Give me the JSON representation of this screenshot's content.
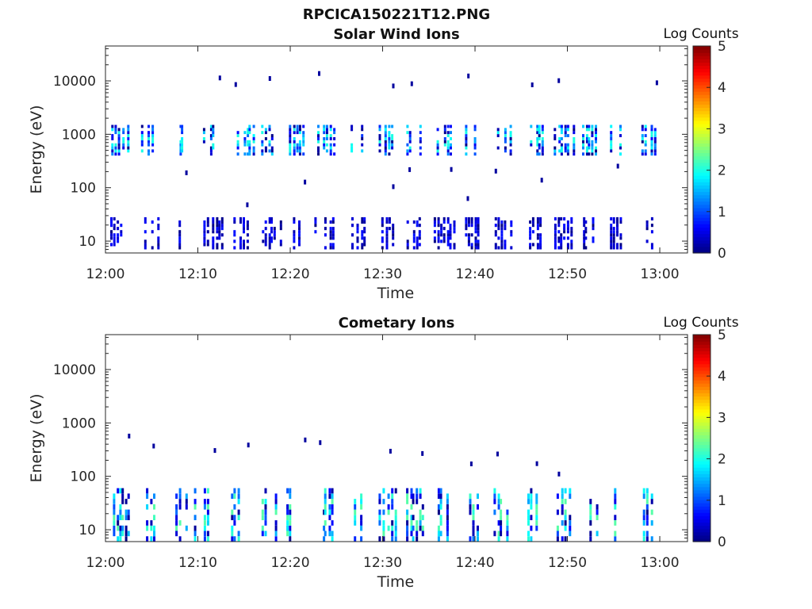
{
  "figure_title": "RPCICA150221T12.PNG",
  "chart_data": [
    {
      "type": "heatmap",
      "title": "Solar Wind Ions",
      "xlabel": "Time",
      "ylabel": "Energy (eV)",
      "x_ticks": [
        "12:00",
        "12:10",
        "12:20",
        "12:30",
        "12:40",
        "12:50",
        "13:00"
      ],
      "x_range_minutes": [
        0,
        63
      ],
      "y_ticks": [
        10,
        100,
        1000,
        10000
      ],
      "y_tick_labels": [
        "10",
        "100",
        "1000",
        "10000"
      ],
      "y_scale": "log",
      "y_range": [
        6,
        45000
      ],
      "colorbar": {
        "label": "Log Counts",
        "ticks": [
          "0",
          "1",
          "2",
          "3",
          "4",
          "5"
        ],
        "range": [
          0,
          5
        ],
        "colormap": "jet"
      },
      "bursts_minutes": [
        1.5,
        4.8,
        8.5,
        11.5,
        14.8,
        17.8,
        20.8,
        23.5,
        27.5,
        30.5,
        33.5,
        36.5,
        39.5,
        43.0,
        46.5,
        49.5,
        52.5,
        55.5,
        59.0
      ],
      "bands": [
        {
          "e_low": 400,
          "e_high": 1500,
          "max_log_count": 2.0
        },
        {
          "e_low": 7,
          "e_high": 28,
          "max_log_count": 0.7
        }
      ]
    },
    {
      "type": "heatmap",
      "title": "Cometary Ions",
      "xlabel": "Time",
      "ylabel": "Energy (eV)",
      "x_ticks": [
        "12:00",
        "12:10",
        "12:20",
        "12:30",
        "12:40",
        "12:50",
        "13:00"
      ],
      "x_range_minutes": [
        0,
        63
      ],
      "y_ticks": [
        10,
        100,
        1000,
        10000
      ],
      "y_tick_labels": [
        "10",
        "100",
        "1000",
        "10000"
      ],
      "y_scale": "log",
      "y_range": [
        6,
        45000
      ],
      "colorbar": {
        "label": "Log Counts",
        "ticks": [
          "0",
          "1",
          "2",
          "3",
          "4",
          "5"
        ],
        "range": [
          0,
          5
        ],
        "colormap": "jet"
      },
      "bursts_minutes": [
        1.7,
        5.0,
        8.5,
        11.5,
        14.5,
        17.5,
        20.5,
        24.0,
        27.5,
        30.5,
        33.5,
        36.5,
        40.0,
        43.0,
        46.5,
        49.5,
        53.0,
        56.0,
        59.0
      ],
      "bands": [
        {
          "e_low": 6,
          "e_high": 60,
          "max_log_count": 2.3
        }
      ]
    }
  ]
}
